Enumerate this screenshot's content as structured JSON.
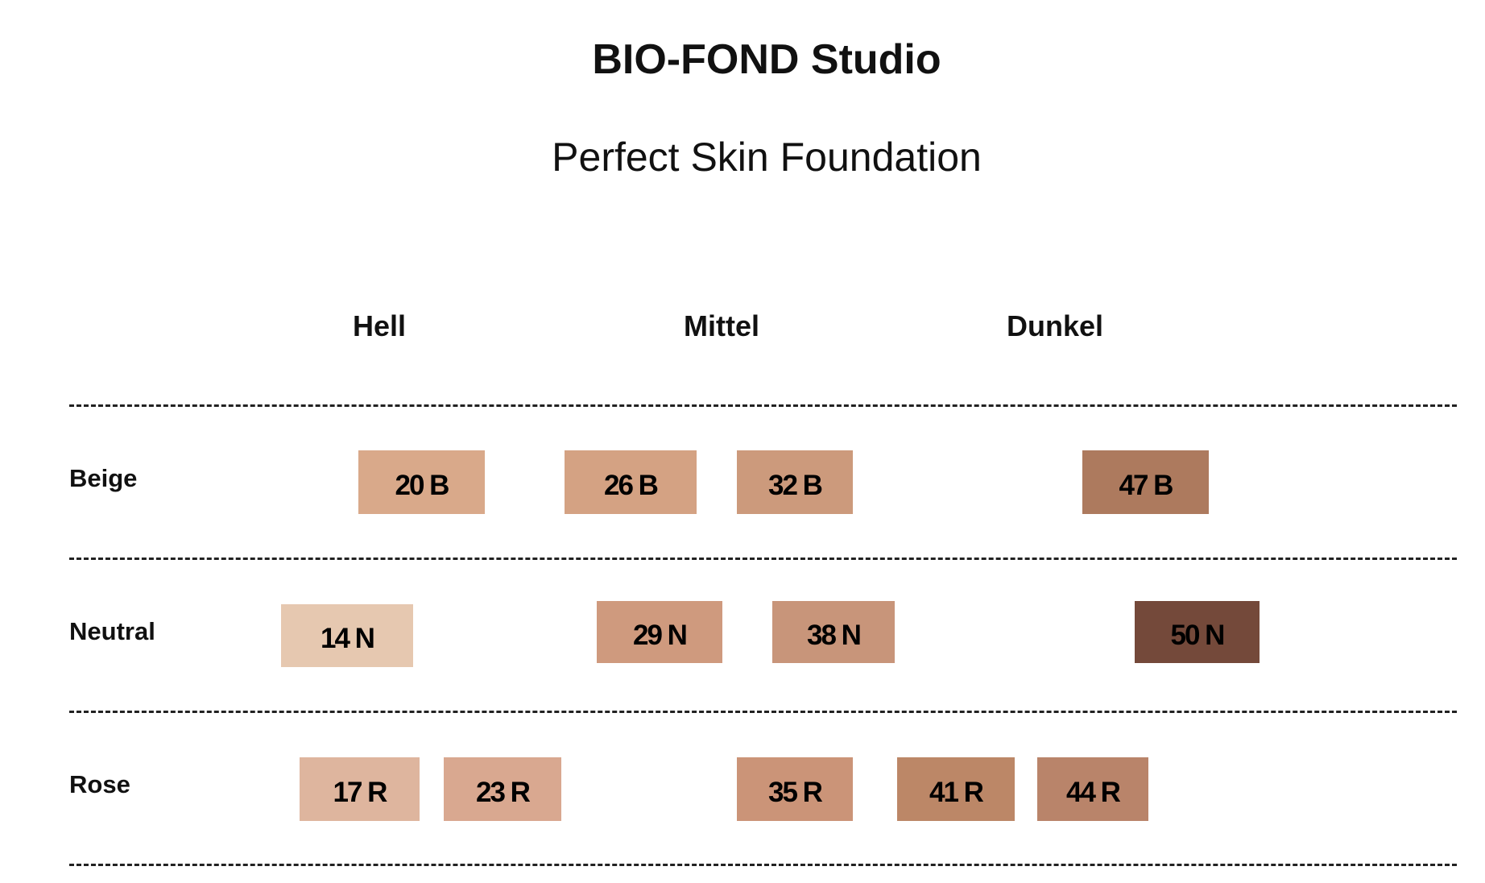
{
  "title": "BIO-FOND Studio",
  "subtitle": "Perfect Skin Foundation",
  "columns": [
    "Hell",
    "Mittel",
    "Dunkel"
  ],
  "rows": [
    {
      "label": "Beige",
      "swatches": [
        {
          "label": "20 B",
          "color": "#d9a98a"
        },
        {
          "label": "26 B",
          "color": "#d4a283"
        },
        {
          "label": "32 B",
          "color": "#cc9a7c"
        },
        {
          "label": "47 B",
          "color": "#ad7a5e"
        }
      ]
    },
    {
      "label": "Neutral",
      "swatches": [
        {
          "label": "14 N",
          "color": "#e6c8b0"
        },
        {
          "label": "29 N",
          "color": "#cf9a7e"
        },
        {
          "label": "38 N",
          "color": "#c8957a"
        },
        {
          "label": "50 N",
          "color": "#74493a"
        }
      ]
    },
    {
      "label": "Rose",
      "swatches": [
        {
          "label": "17 R",
          "color": "#deb59e"
        },
        {
          "label": "23 R",
          "color": "#d9a890"
        },
        {
          "label": "35 R",
          "color": "#cb9478"
        },
        {
          "label": "41 R",
          "color": "#bc8767"
        },
        {
          "label": "44 R",
          "color": "#b9846a"
        }
      ]
    }
  ]
}
